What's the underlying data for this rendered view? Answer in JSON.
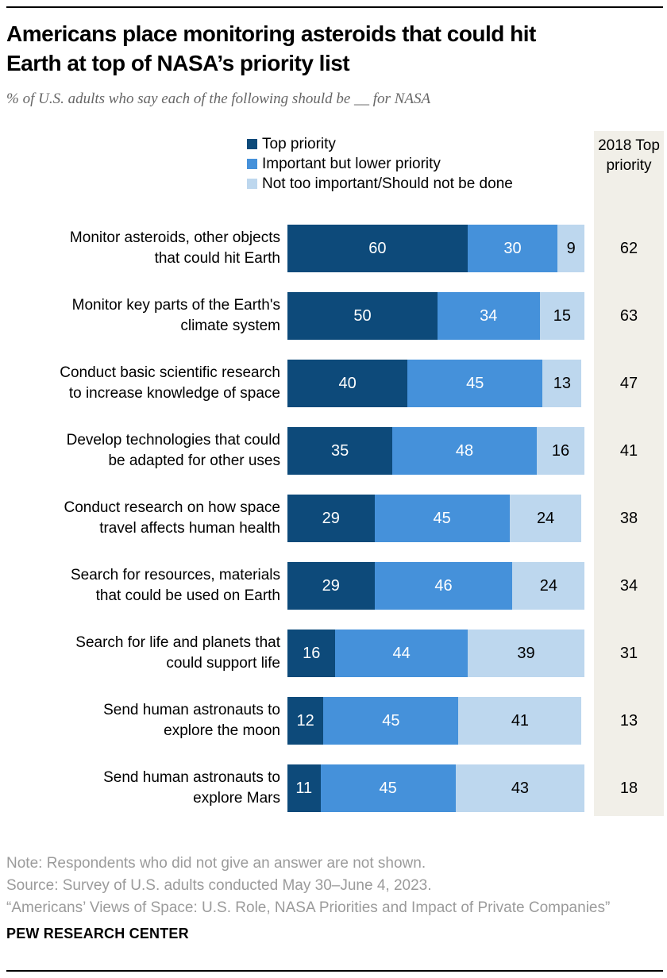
{
  "page": {
    "title_lines": [
      "Americans place monitoring asteroids that could hit",
      "Earth at top of NASA’s priority list"
    ],
    "subtitle": "% of U.S. adults who say each of the following should be __ for NASA",
    "notes": [
      "Note: Respondents who did not give an answer are not shown.",
      "Source: Survey of U.S. adults conducted May 30–June 4, 2023.",
      "“Americans’ Views of Space: U.S. Role, NASA Priorities and Impact of Private Companies”"
    ],
    "brand": "PEW RESEARCH CENTER"
  },
  "legend": {
    "items": [
      {
        "label": "Top priority",
        "color": "#0d4a7a"
      },
      {
        "label": "Important but lower priority",
        "color": "#4591da"
      },
      {
        "label": "Not too important/Should not be done",
        "color": "#bdd7ee"
      }
    ]
  },
  "column_2018": {
    "header": "2018 Top priority",
    "background": "#f1efe8"
  },
  "chart_data": {
    "type": "bar",
    "stacked": true,
    "orientation": "horizontal",
    "unit": "% of U.S. adults",
    "xlim": [
      0,
      100
    ],
    "series_names": [
      "Top priority",
      "Important but lower priority",
      "Not too important/Should not be done"
    ],
    "series_colors": [
      "#0d4a7a",
      "#4591da",
      "#bdd7ee"
    ],
    "rows": [
      {
        "label_lines": [
          "Monitor asteroids, other objects",
          "that could hit Earth"
        ],
        "values": [
          60,
          30,
          9
        ],
        "value_2018": 62
      },
      {
        "label_lines": [
          "Monitor key parts of the Earth's",
          "climate system"
        ],
        "values": [
          50,
          34,
          15
        ],
        "value_2018": 63
      },
      {
        "label_lines": [
          "Conduct basic scientific research",
          "to increase knowledge of space"
        ],
        "values": [
          40,
          45,
          13
        ],
        "value_2018": 47
      },
      {
        "label_lines": [
          "Develop technologies that could",
          "be adapted for other uses"
        ],
        "values": [
          35,
          48,
          16
        ],
        "value_2018": 41
      },
      {
        "label_lines": [
          "Conduct research on how space",
          "travel affects human health"
        ],
        "values": [
          29,
          45,
          24
        ],
        "value_2018": 38
      },
      {
        "label_lines": [
          "Search for resources, materials",
          "that could be used on Earth"
        ],
        "values": [
          29,
          46,
          24
        ],
        "value_2018": 34
      },
      {
        "label_lines": [
          "Search for life and planets that",
          "could support life"
        ],
        "values": [
          16,
          44,
          39
        ],
        "value_2018": 31
      },
      {
        "label_lines": [
          "Send human astronauts to",
          "explore the moon"
        ],
        "values": [
          12,
          45,
          41
        ],
        "value_2018": 13
      },
      {
        "label_lines": [
          "Send human astronauts to",
          "explore Mars"
        ],
        "values": [
          11,
          45,
          43
        ],
        "value_2018": 18
      }
    ]
  }
}
